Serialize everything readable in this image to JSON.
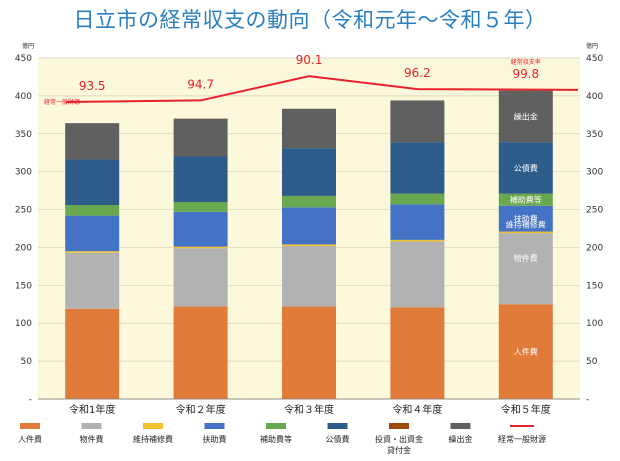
{
  "chart_data": {
    "type": "bar",
    "stacked": true,
    "title": "日立市の経常収支の動向（令和元年～令和５年）",
    "y_unit_left": "億円",
    "y_unit_right": "億円",
    "ylim": [
      0,
      450
    ],
    "y_ticks": [
      0,
      50,
      100,
      150,
      200,
      250,
      300,
      350,
      400,
      450
    ],
    "y_tick_labels": [
      "-",
      "50",
      "100",
      "150",
      "200",
      "250",
      "300",
      "350",
      "400",
      "450"
    ],
    "categories": [
      "令和1年度",
      "令和２年度",
      "令和３年度",
      "令和４年度",
      "令和５年度"
    ],
    "series": [
      {
        "name": "人件費",
        "color": "#e07b39",
        "values": [
          119,
          122,
          122,
          121,
          125
        ]
      },
      {
        "name": "物件費",
        "color": "#b2b2b2",
        "values": [
          74,
          77,
          80,
          87,
          94
        ]
      },
      {
        "name": "維持補修費",
        "color": "#f2c12e",
        "values": [
          2,
          2,
          2,
          2,
          2
        ]
      },
      {
        "name": "扶助費",
        "color": "#4472c4",
        "values": [
          47,
          46,
          49,
          47,
          34
        ]
      },
      {
        "name": "補助費等",
        "color": "#6aa84f",
        "values": [
          14,
          13,
          15,
          14,
          16
        ]
      },
      {
        "name": "公債費",
        "color": "#2e5c8a",
        "values": [
          60,
          60,
          63,
          68,
          68
        ]
      },
      {
        "name": "投資・出資金貸付金",
        "color": "#9e480e",
        "values": [
          0,
          0,
          0,
          0,
          0
        ]
      },
      {
        "name": "繰出金",
        "color": "#606060",
        "values": [
          48,
          50,
          52,
          55,
          68
        ]
      }
    ],
    "line_series": {
      "name": "経常一般財源",
      "color": "#e8212a",
      "values": [
        392,
        394,
        426,
        409,
        408
      ]
    },
    "ratio_label": "経常収支率",
    "ratios": [
      "93.5",
      "94.7",
      "90.1",
      "96.2",
      "99.8"
    ],
    "ratio_color": "#e8212a",
    "line_annotation": "経常一般財源",
    "inline_labels": [
      {
        "series": "人件費",
        "text": "人件費",
        "bar": 4
      },
      {
        "series": "物件費",
        "text": "物件費",
        "bar": 4
      },
      {
        "series": "維持補修費",
        "text": "維持補修費",
        "bar": 4
      },
      {
        "series": "扶助費",
        "text": "扶助費",
        "bar": 4
      },
      {
        "series": "補助費等",
        "text": "補助費等",
        "bar": 4
      },
      {
        "series": "公債費",
        "text": "公債費",
        "bar": 4
      },
      {
        "series": "繰出金",
        "text": "繰出金",
        "bar": 4
      }
    ],
    "legend": [
      {
        "label": "人件費",
        "color": "#e07b39",
        "kind": "box"
      },
      {
        "label": "物件費",
        "color": "#b2b2b2",
        "kind": "box"
      },
      {
        "label": "維持補修費",
        "color": "#f2c12e",
        "kind": "box"
      },
      {
        "label": "扶助費",
        "color": "#4472c4",
        "kind": "box"
      },
      {
        "label": "補助費等",
        "color": "#6aa84f",
        "kind": "box"
      },
      {
        "label": "公債費",
        "color": "#2e5c8a",
        "kind": "box"
      },
      {
        "label": "投資・出資金",
        "label2": "貸付金",
        "color": "#9e480e",
        "kind": "box"
      },
      {
        "label": "繰出金",
        "color": "#606060",
        "kind": "box"
      },
      {
        "label": "経常一般財源",
        "color": "#e8212a",
        "kind": "line"
      }
    ],
    "plot_background": "#fcf8dc"
  }
}
